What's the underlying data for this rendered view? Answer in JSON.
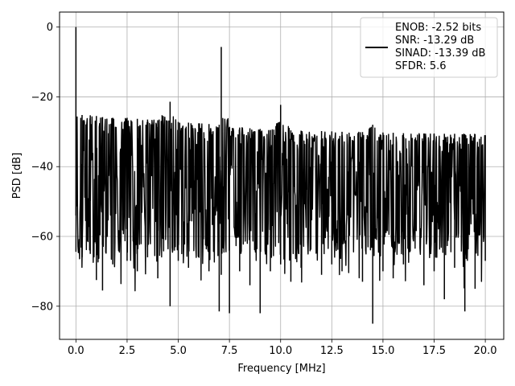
{
  "chart_data": {
    "type": "line",
    "xlabel": "Frequency [MHz]",
    "ylabel": "PSD [dB]",
    "xlim": [
      -0.8,
      20.9
    ],
    "ylim": [
      -89.5,
      4.3
    ],
    "xticks": [
      0.0,
      2.5,
      5.0,
      7.5,
      10.0,
      12.5,
      15.0,
      17.5,
      20.0
    ],
    "xtick_labels": [
      "0.0",
      "2.5",
      "5.0",
      "7.5",
      "10.0",
      "12.5",
      "15.0",
      "17.5",
      "20.0"
    ],
    "yticks": [
      0,
      -20,
      -40,
      -60,
      -80
    ],
    "ytick_labels": [
      "0",
      "−20",
      "−40",
      "−60",
      "−80"
    ],
    "grid": true,
    "legend_position": "top-right",
    "series": [
      {
        "color": "#000000",
        "x": [
          0.0,
          0.3,
          0.7,
          1.0,
          1.3,
          1.8,
          2.5,
          3.0,
          3.5,
          4.0,
          4.6,
          5.0,
          5.5,
          6.0,
          6.5,
          7.0,
          7.1,
          7.5,
          8.0,
          8.5,
          9.0,
          9.5,
          10.0,
          10.5,
          11.0,
          12.0,
          12.5,
          13.0,
          14.0,
          14.5,
          15.0,
          15.5,
          16.0,
          17.0,
          17.5,
          18.0,
          18.5,
          19.0,
          19.5,
          20.0
        ],
        "y_upper": [
          0.0,
          -25.2,
          -25.3,
          -25.5,
          -25.8,
          -26.0,
          -26.0,
          -26.3,
          -26.5,
          -26.7,
          -21.4,
          -27.2,
          -27.4,
          -27.6,
          -27.8,
          -28.0,
          -5.7,
          -28.6,
          -28.8,
          -29.0,
          -29.2,
          -29.5,
          -22.3,
          -29.6,
          -29.7,
          -29.8,
          -29.9,
          -30.0,
          -30.1,
          -28.0,
          -30.2,
          -30.3,
          -30.4,
          -30.5,
          -30.5,
          -30.6,
          -30.6,
          -30.7,
          -30.7,
          -31.0
        ],
        "y_lower": [
          -54.0,
          -66.0,
          -65.0,
          -72.5,
          -75.5,
          -68.0,
          -67.0,
          -70.0,
          -66.0,
          -72.0,
          -80.0,
          -67.0,
          -69.0,
          -66.0,
          -70.0,
          -81.5,
          -71.0,
          -82.0,
          -70.0,
          -74.0,
          -82.0,
          -70.0,
          -68.0,
          -73.0,
          -69.0,
          -71.0,
          -68.0,
          -70.0,
          -73.0,
          -85.0,
          -70.0,
          -72.0,
          -68.0,
          -74.0,
          -70.0,
          -78.0,
          -69.0,
          -81.5,
          -75.0,
          -67.0
        ]
      }
    ],
    "legend": {
      "lines": [
        "ENOB: -2.52 bits",
        "SNR: -13.29 dB",
        "SINAD: -13.39 dB",
        "SFDR: 5.6"
      ]
    }
  }
}
